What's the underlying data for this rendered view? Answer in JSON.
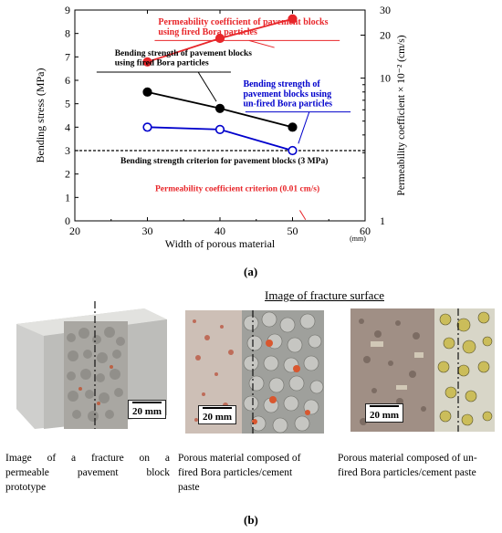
{
  "chart_data": {
    "type": "line",
    "xlabel": "Width of porous material",
    "xunit": "(mm)",
    "ylabel_left": "Bending stress (MPa)",
    "ylabel_right": "Permeability coefficient × 10⁻² (cm/s)",
    "xlim": [
      20,
      60
    ],
    "ylim_left": [
      0,
      9
    ],
    "ylim_right": [
      1,
      30
    ],
    "right_axis_scale": "log",
    "x_ticks": [
      "20",
      "30",
      "40",
      "50",
      "60"
    ],
    "y_ticks_left": [
      "0",
      "1",
      "2",
      "3",
      "4",
      "5",
      "6",
      "7",
      "8",
      "9"
    ],
    "y_ticks_right": [
      "1",
      "10",
      "20",
      "30"
    ],
    "grid": false,
    "series": [
      {
        "name": "Bending strength of pavement blocks using fired Bora particles",
        "axis": "left",
        "color": "#000000",
        "marker": "filled",
        "x": [
          30,
          40,
          50
        ],
        "y": [
          5.5,
          4.8,
          4.0
        ]
      },
      {
        "name": "Bending strength of pavement blocks using un-fired Bora particles",
        "axis": "left",
        "color": "#0000cc",
        "marker": "open",
        "x": [
          30,
          40,
          50
        ],
        "y": [
          4.0,
          3.9,
          3.0
        ]
      },
      {
        "name": "Permeability coefficient of pavement blocks using fired Bora particles",
        "axis": "right",
        "color": "#e8262a",
        "marker": "filled",
        "x": [
          30,
          40,
          50
        ],
        "y": [
          13,
          19,
          26
        ]
      }
    ],
    "reference_lines": [
      {
        "label": "Bending strength criterion for pavement blocks (3 MPa)",
        "axis": "left",
        "value": 3
      },
      {
        "label": "Permeability coefficient criterion (0.01 cm/s)",
        "axis": "right",
        "value": 1
      }
    ],
    "annotations": {
      "perm_line1": "Permeability coefficient of pavement blocks",
      "perm_line2": "using fired Bora particles",
      "fired_line1": "Bending strength of pavement blocks",
      "fired_line2": "using fired Bora particles",
      "unfired_line1": "Bending strength of",
      "unfired_line2": "pavement blocks using",
      "unfired_line3": "un-fired Bora particles",
      "criterion_bending": "Bending strength criterion for pavement blocks (3 MPa)",
      "criterion_perm": "Permeability coefficient criterion (0.01 cm/s)"
    }
  },
  "panel_a_label": "(a)",
  "panel_b_label": "(b)",
  "fracture_title": "Image of fracture surface",
  "scale_bar_label": "20 mm",
  "captions": [
    {
      "line1": "Image of a fracture on a",
      "line2": "permeable pavement block",
      "line3": "prototype"
    },
    {
      "line1": "Porous material composed of",
      "line2": "fired Bora particles/cement",
      "line3": "paste"
    },
    {
      "line1": "Porous material composed of un-",
      "line2": "fired Bora particles/cement paste",
      "line3": ""
    }
  ],
  "colors": {
    "fired": "#000000",
    "unfired": "#0000cc",
    "permeability": "#e8262a",
    "concrete": "#c9c9c7",
    "aggregate": "#b5b3ae"
  }
}
